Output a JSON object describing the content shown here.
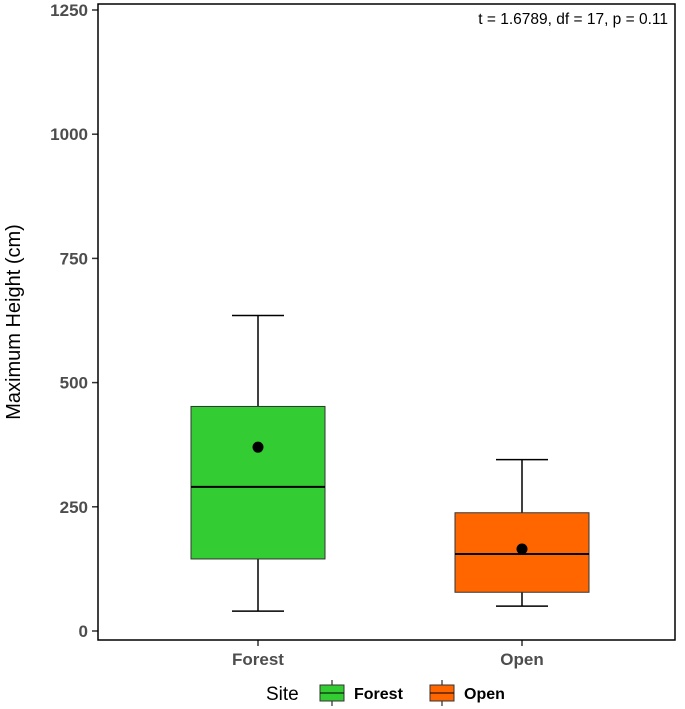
{
  "chart_data": {
    "type": "box",
    "ylabel": "Maximum Height (cm)",
    "xlabel": "",
    "ylim": [
      0,
      1250
    ],
    "yticks": [
      "0",
      "250",
      "500",
      "750",
      "1000",
      "1250"
    ],
    "categories": [
      "Forest",
      "Open"
    ],
    "annotation": "t = 1.6789, df = 17, p = 0.11",
    "legend": {
      "title": "Site",
      "position": "bottom",
      "entries": [
        "Forest",
        "Open"
      ]
    },
    "grid": false,
    "boxes": [
      {
        "name": "Forest",
        "whisker_low": 40,
        "q1": 145,
        "median": 290,
        "q3": 452,
        "whisker_high": 635,
        "mean": 370,
        "color": "#33cc33"
      },
      {
        "name": "Open",
        "whisker_low": 50,
        "q1": 78,
        "median": 155,
        "q3": 238,
        "whisker_high": 345,
        "mean": 165,
        "color": "#ff6600"
      }
    ]
  }
}
